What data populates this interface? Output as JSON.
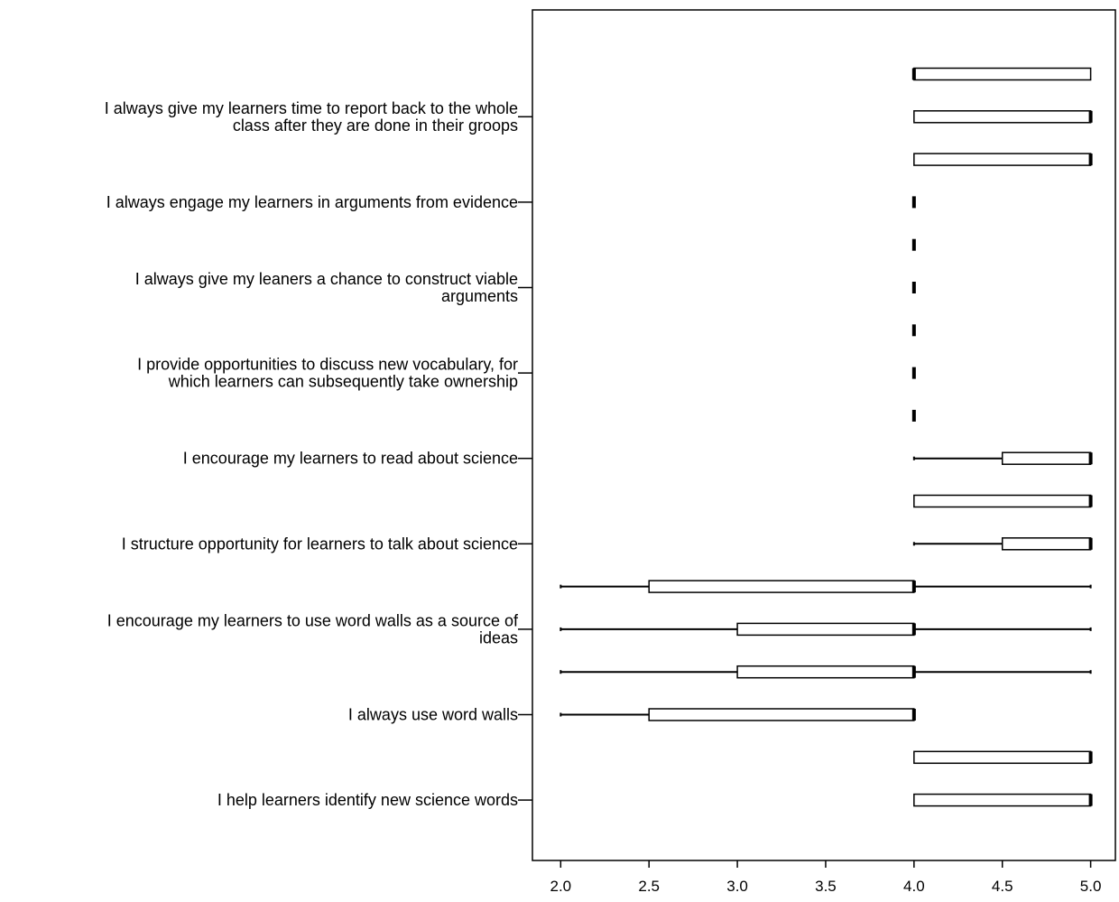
{
  "chart_data": {
    "type": "boxplot",
    "orientation": "horizontal",
    "title": "",
    "xlabel": "",
    "ylabel": "",
    "xlim": [
      1.84,
      5.14
    ],
    "xticks": [
      "2.0",
      "2.5",
      "3.0",
      "3.5",
      "4.0",
      "4.5",
      "5.0"
    ],
    "xtick_values": [
      2.0,
      2.5,
      3.0,
      3.5,
      4.0,
      4.5,
      5.0
    ],
    "grid": false,
    "legend": "none",
    "categories": [
      "I always give my learners time to report back to the whole\nclass after they are done in their groops",
      "I always engage my learners in arguments from evidence",
      "I always give my leaners a chance to construct viable\narguments",
      "I provide opportunities to discuss new vocabulary, for\nwhich learners can subsequently take ownership",
      "I encourage my learners to read about science",
      "I structure opportunity for learners to talk about science",
      "I encourage my learners to use word walls as a source of\nideas",
      "I always use word walls",
      "I help learners identify new science words"
    ],
    "boxes": [
      {
        "min": 4.0,
        "q1": 4.0,
        "median": 4.0,
        "q3": 5.0,
        "max": 5.0
      },
      {
        "min": 4.0,
        "q1": 4.0,
        "median": 5.0,
        "q3": 5.0,
        "max": 5.0
      },
      {
        "min": 4.0,
        "q1": 4.0,
        "median": 5.0,
        "q3": 5.0,
        "max": 5.0
      },
      {
        "min": 4.0,
        "q1": 4.0,
        "median": 4.0,
        "q3": 4.0,
        "max": 4.0
      },
      {
        "min": 4.0,
        "q1": 4.0,
        "median": 4.0,
        "q3": 4.0,
        "max": 4.0
      },
      {
        "min": 4.0,
        "q1": 4.0,
        "median": 4.0,
        "q3": 4.0,
        "max": 4.0
      },
      {
        "min": 4.0,
        "q1": 4.0,
        "median": 4.0,
        "q3": 4.0,
        "max": 4.0
      },
      {
        "min": 4.0,
        "q1": 4.0,
        "median": 4.0,
        "q3": 4.0,
        "max": 4.0
      },
      {
        "min": 4.0,
        "q1": 4.0,
        "median": 4.0,
        "q3": 4.0,
        "max": 4.0
      },
      {
        "min": 4.0,
        "q1": 4.5,
        "median": 5.0,
        "q3": 5.0,
        "max": 5.0
      },
      {
        "min": 4.0,
        "q1": 4.0,
        "median": 5.0,
        "q3": 5.0,
        "max": 5.0
      },
      {
        "min": 4.0,
        "q1": 4.5,
        "median": 5.0,
        "q3": 5.0,
        "max": 5.0
      },
      {
        "min": 2.0,
        "q1": 2.5,
        "median": 4.0,
        "q3": 4.0,
        "max": 5.0
      },
      {
        "min": 2.0,
        "q1": 3.0,
        "median": 4.0,
        "q3": 4.0,
        "max": 5.0
      },
      {
        "min": 2.0,
        "q1": 3.0,
        "median": 4.0,
        "q3": 4.0,
        "max": 5.0
      },
      {
        "min": 2.0,
        "q1": 2.5,
        "median": 4.0,
        "q3": 4.0,
        "max": 4.0
      },
      {
        "min": 4.0,
        "q1": 4.0,
        "median": 5.0,
        "q3": 5.0,
        "max": 5.0
      },
      {
        "min": 4.0,
        "q1": 4.0,
        "median": 5.0,
        "q3": 5.0,
        "max": 5.0
      }
    ],
    "colors": {
      "box_fill": "#ffffff",
      "stroke": "#000000"
    }
  }
}
